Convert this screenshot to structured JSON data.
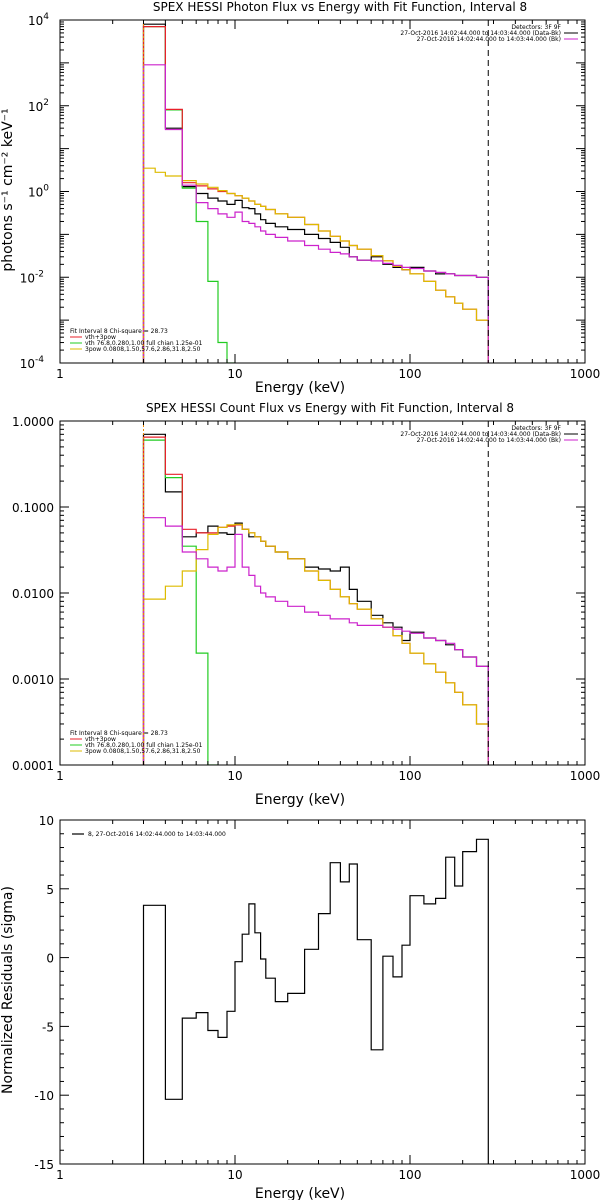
{
  "colors": {
    "black": "#000000",
    "red": "#e8202a",
    "green": "#22cc22",
    "magenta": "#cc22cc",
    "yellow": "#ddbb00",
    "orange": "#ee8800",
    "grey": "#666666"
  },
  "chart_data": [
    {
      "type": "line",
      "title": "SPEX HESSI Photon Flux vs Energy with Fit Function, Interval 8",
      "xlabel": "Energy (keV)",
      "ylabel": "photons s⁻¹ cm⁻² keV⁻¹",
      "xscale": "log",
      "yscale": "log",
      "xlim": [
        1,
        1000
      ],
      "ylim": [
        0.0001,
        10000
      ],
      "x_ticks": [
        {
          "v": 1,
          "t": "1"
        },
        {
          "v": 10,
          "t": "10"
        },
        {
          "v": 100,
          "t": "100"
        },
        {
          "v": 1000,
          "t": "1000"
        }
      ],
      "y_ticks": [
        {
          "v": 0.0001,
          "b": "10",
          "e": "-4"
        },
        {
          "v": 0.01,
          "b": "10",
          "e": "-2"
        },
        {
          "v": 1,
          "b": "10",
          "e": "0"
        },
        {
          "v": 100,
          "b": "10",
          "e": "2"
        },
        {
          "v": 10000,
          "b": "10",
          "e": "4"
        }
      ],
      "vlines": [
        {
          "x": 3,
          "color": "orange",
          "dash": "2,2"
        },
        {
          "x": 280,
          "color": "black",
          "dash": "6,4"
        }
      ],
      "legend_topright": [
        {
          "text": "Detectors: 3F 9F",
          "color": ""
        },
        {
          "text": "27-Oct-2016 14:02:44.000 to 14:03:44.000 (Data-Bk)",
          "color": "black"
        },
        {
          "text": "27-Oct-2016 14:02:44.000 to 14:03:44.000 (Bk)",
          "color": "magenta"
        }
      ],
      "legend_bottomleft": [
        {
          "text": "Fit Interval 8    Chi-square = 28.73",
          "color": ""
        },
        {
          "text": "vth+3pow",
          "color": "red"
        },
        {
          "text": "vth 76.8,0.280,1.00  full chian 1.25e-01",
          "color": "green"
        },
        {
          "text": "3pow 0.0808,1.50,57.6,2.86,31.8,2.50",
          "color": "yellow"
        }
      ],
      "series": [
        {
          "color": "black",
          "x": [
            3,
            3.5,
            4,
            5,
            6,
            7,
            8,
            9,
            10,
            11,
            12,
            13,
            14,
            15,
            17,
            20,
            25,
            30,
            35,
            40,
            45,
            50,
            60,
            70,
            80,
            90,
            100,
            120,
            140,
            160,
            180,
            200,
            240,
            280
          ],
          "y": [
            8000,
            8000,
            30,
            1.3,
            0.9,
            0.7,
            0.6,
            0.5,
            0.62,
            0.42,
            0.4,
            0.3,
            0.22,
            0.18,
            0.15,
            0.13,
            0.1,
            0.08,
            0.065,
            0.05,
            0.03,
            0.025,
            0.03,
            0.02,
            0.017,
            0.015,
            0.017,
            0.014,
            0.012,
            0.012,
            0.011,
            0.011,
            0.01,
            0.01
          ]
        },
        {
          "color": "green",
          "x": [
            3,
            3.5,
            4,
            5,
            6,
            7,
            8,
            9,
            10,
            11,
            12,
            13,
            14,
            15,
            17,
            20,
            25,
            30,
            35,
            40,
            45,
            50,
            60,
            70,
            80,
            90,
            100,
            120,
            140,
            160,
            180,
            200,
            240,
            280
          ],
          "y": [
            7000,
            7000,
            80,
            1.2,
            0.2,
            0.008,
            0.0003,
            1e-05,
            null,
            null,
            null,
            null,
            null,
            null,
            null,
            null,
            null,
            null,
            null,
            null,
            null,
            null,
            null,
            null,
            null,
            null,
            null,
            null,
            null,
            null,
            null,
            null,
            null,
            null
          ]
        },
        {
          "color": "red",
          "x": [
            3,
            3.5,
            4,
            5,
            6,
            7,
            8,
            9,
            10,
            11,
            12,
            13,
            14,
            15,
            17,
            20,
            25,
            30,
            35,
            40,
            45,
            50,
            60,
            70,
            80,
            90,
            100,
            120,
            140,
            160,
            180,
            200,
            240,
            280
          ],
          "y": [
            7000,
            7000,
            82,
            1.6,
            1.35,
            1.15,
            1.0,
            0.9,
            0.8,
            0.7,
            0.6,
            0.5,
            0.45,
            0.38,
            0.3,
            0.25,
            0.17,
            0.12,
            0.09,
            0.07,
            0.055,
            0.045,
            0.032,
            0.024,
            0.018,
            0.015,
            0.012,
            0.008,
            0.005,
            0.0035,
            0.0025,
            0.0018,
            0.001,
            0.0005
          ]
        },
        {
          "color": "yellow",
          "x": [
            3,
            3.5,
            4,
            5,
            6,
            7,
            8,
            9,
            10,
            11,
            12,
            13,
            14,
            15,
            17,
            20,
            25,
            30,
            35,
            40,
            45,
            50,
            60,
            70,
            80,
            90,
            100,
            120,
            140,
            160,
            180,
            200,
            240,
            280
          ],
          "y": [
            3.5,
            2.8,
            2.3,
            1.8,
            1.5,
            1.25,
            1.05,
            0.9,
            0.8,
            0.7,
            0.6,
            0.5,
            0.45,
            0.38,
            0.3,
            0.25,
            0.17,
            0.12,
            0.09,
            0.07,
            0.055,
            0.045,
            0.032,
            0.024,
            0.018,
            0.015,
            0.012,
            0.008,
            0.005,
            0.0035,
            0.0025,
            0.0018,
            0.001,
            0.0005
          ]
        },
        {
          "color": "magenta",
          "x": [
            3,
            3.5,
            4,
            5,
            6,
            7,
            8,
            9,
            10,
            11,
            12,
            13,
            14,
            15,
            17,
            20,
            25,
            30,
            35,
            40,
            45,
            50,
            60,
            70,
            80,
            90,
            100,
            120,
            140,
            160,
            180,
            200,
            240,
            280
          ],
          "y": [
            900,
            900,
            28,
            1.4,
            0.55,
            0.4,
            0.3,
            0.25,
            0.33,
            0.2,
            0.18,
            0.15,
            0.12,
            0.1,
            0.085,
            0.07,
            0.055,
            0.045,
            0.038,
            0.035,
            0.03,
            0.025,
            0.024,
            0.021,
            0.019,
            0.017,
            0.016,
            0.014,
            0.013,
            0.012,
            0.011,
            0.011,
            0.01,
            0.01
          ]
        }
      ]
    },
    {
      "type": "line",
      "title": "SPEX HESSI Count Flux vs Energy with Fit Function, Interval 8",
      "xlabel": "Energy (keV)",
      "ylabel": "",
      "xscale": "log",
      "yscale": "log",
      "xlim": [
        1,
        1000
      ],
      "ylim": [
        0.0001,
        1.0
      ],
      "x_ticks": [
        {
          "v": 1,
          "t": "1"
        },
        {
          "v": 10,
          "t": "10"
        },
        {
          "v": 100,
          "t": "100"
        },
        {
          "v": 1000,
          "t": "1000"
        }
      ],
      "y_ticks": [
        {
          "v": 0.0001,
          "t": "0.0001"
        },
        {
          "v": 0.001,
          "t": "0.0010"
        },
        {
          "v": 0.01,
          "t": "0.0100"
        },
        {
          "v": 0.1,
          "t": "0.1000"
        },
        {
          "v": 1.0,
          "t": "1.0000"
        }
      ],
      "vlines": [
        {
          "x": 3,
          "color": "orange",
          "dash": "2,2"
        },
        {
          "x": 280,
          "color": "black",
          "dash": "6,4"
        }
      ],
      "legend_topright": [
        {
          "text": "Detectors: 3F 9F",
          "color": ""
        },
        {
          "text": "27-Oct-2016 14:02:44.000 to 14:03:44.000 (Data-Bk)",
          "color": "black"
        },
        {
          "text": "27-Oct-2016 14:02:44.000 to 14:03:44.000 (Bk)",
          "color": "magenta"
        }
      ],
      "legend_bottomleft": [
        {
          "text": "Fit Interval 8    Chi-square = 28.73",
          "color": ""
        },
        {
          "text": "vth+3pow",
          "color": "red"
        },
        {
          "text": "vth 76.8,0.280,1.00  full chian 1.25e-01",
          "color": "green"
        },
        {
          "text": "3pow 0.0808,1.50,57.6,2.86,31.8,2.50",
          "color": "yellow"
        }
      ],
      "series": [
        {
          "color": "black",
          "x": [
            3,
            3.5,
            4,
            5,
            6,
            7,
            8,
            9,
            10,
            11,
            12,
            13,
            14,
            15,
            17,
            20,
            25,
            30,
            35,
            40,
            45,
            50,
            60,
            70,
            80,
            90,
            100,
            120,
            140,
            160,
            180,
            200,
            240,
            280
          ],
          "y": [
            0.7,
            0.7,
            0.15,
            0.045,
            0.05,
            0.06,
            0.05,
            0.048,
            0.065,
            0.055,
            0.045,
            0.045,
            0.04,
            0.035,
            0.03,
            0.025,
            0.02,
            0.019,
            0.018,
            0.02,
            0.011,
            0.008,
            0.0055,
            0.0045,
            0.004,
            0.0028,
            0.0035,
            0.003,
            0.0028,
            0.0025,
            0.0022,
            0.0018,
            0.0014,
            0.001
          ]
        },
        {
          "color": "green",
          "x": [
            3,
            3.5,
            4,
            5,
            6,
            7,
            8,
            9,
            10,
            11,
            12,
            13,
            14,
            15,
            17,
            20,
            25,
            30,
            35,
            40,
            45,
            50,
            60,
            70,
            80,
            90,
            100,
            120,
            140,
            160,
            180,
            200,
            240,
            280
          ],
          "y": [
            0.6,
            0.6,
            0.22,
            0.035,
            0.002,
            5e-05,
            null,
            null,
            null,
            null,
            null,
            null,
            null,
            null,
            null,
            null,
            null,
            null,
            null,
            null,
            null,
            null,
            null,
            null,
            null,
            null,
            null,
            null,
            null,
            null,
            null,
            null,
            null,
            null
          ]
        },
        {
          "color": "red",
          "x": [
            3,
            3.5,
            4,
            5,
            6,
            7,
            8,
            9,
            10,
            11,
            12,
            13,
            14,
            15,
            17,
            20,
            25,
            30,
            35,
            40,
            45,
            50,
            60,
            70,
            80,
            90,
            100,
            120,
            140,
            160,
            180,
            200,
            240,
            280
          ],
          "y": [
            0.65,
            0.65,
            0.24,
            0.055,
            0.05,
            0.05,
            0.058,
            0.06,
            0.062,
            0.055,
            0.05,
            0.045,
            0.04,
            0.035,
            0.03,
            0.025,
            0.018,
            0.014,
            0.011,
            0.009,
            0.0075,
            0.0065,
            0.005,
            0.004,
            0.0032,
            0.0026,
            0.002,
            0.0015,
            0.0012,
            0.0009,
            0.0007,
            0.0005,
            0.0003,
            0.0002
          ]
        },
        {
          "color": "yellow",
          "x": [
            3,
            3.5,
            4,
            5,
            6,
            7,
            8,
            9,
            10,
            11,
            12,
            13,
            14,
            15,
            17,
            20,
            25,
            30,
            35,
            40,
            45,
            50,
            60,
            70,
            80,
            90,
            100,
            120,
            140,
            160,
            180,
            200,
            240,
            280
          ],
          "y": [
            0.0085,
            0.0085,
            0.012,
            0.018,
            0.032,
            0.048,
            0.058,
            0.062,
            0.063,
            0.055,
            0.05,
            0.045,
            0.04,
            0.035,
            0.03,
            0.025,
            0.018,
            0.014,
            0.011,
            0.009,
            0.0075,
            0.0065,
            0.005,
            0.004,
            0.0032,
            0.0026,
            0.002,
            0.0015,
            0.0012,
            0.0009,
            0.0007,
            0.0005,
            0.0003,
            0.0002
          ]
        },
        {
          "color": "magenta",
          "x": [
            3,
            3.5,
            4,
            5,
            6,
            7,
            8,
            9,
            10,
            11,
            12,
            13,
            14,
            15,
            17,
            20,
            25,
            30,
            35,
            40,
            45,
            50,
            60,
            70,
            80,
            90,
            100,
            120,
            140,
            160,
            180,
            200,
            240,
            280
          ],
          "y": [
            0.075,
            0.075,
            0.06,
            0.03,
            0.025,
            0.02,
            0.018,
            0.02,
            0.048,
            0.02,
            0.016,
            0.012,
            0.01,
            0.009,
            0.008,
            0.007,
            0.006,
            0.0055,
            0.005,
            0.005,
            0.0045,
            0.0042,
            0.0042,
            0.004,
            0.0038,
            0.0036,
            0.0034,
            0.003,
            0.0028,
            0.0026,
            0.0022,
            0.0018,
            0.0014,
            0.001
          ]
        }
      ]
    },
    {
      "type": "line",
      "title": "",
      "xlabel": "Energy (keV)",
      "ylabel": "Normalized Residuals (sigma)",
      "xscale": "log",
      "yscale": "linear",
      "xlim": [
        1,
        1000
      ],
      "ylim": [
        -15,
        10
      ],
      "x_ticks": [
        {
          "v": 1,
          "t": "1"
        },
        {
          "v": 10,
          "t": "10"
        },
        {
          "v": 100,
          "t": "100"
        },
        {
          "v": 1000,
          "t": "1000"
        }
      ],
      "y_ticks": [
        {
          "v": -15,
          "t": "-15"
        },
        {
          "v": -10,
          "t": "-10"
        },
        {
          "v": -5,
          "t": "-5"
        },
        {
          "v": 0,
          "t": "0"
        },
        {
          "v": 5,
          "t": "5"
        },
        {
          "v": 10,
          "t": "10"
        }
      ],
      "vlines": [],
      "legend_topleft": [
        {
          "text": "8, 27-Oct-2016 14:02:44.000 to 14:03:44.000",
          "color": "black"
        }
      ],
      "series": [
        {
          "color": "black",
          "x": [
            3,
            3.5,
            4,
            5,
            6,
            7,
            8,
            9,
            10,
            11,
            12,
            13,
            14,
            15,
            17,
            20,
            25,
            30,
            35,
            40,
            45,
            50,
            60,
            70,
            80,
            90,
            100,
            120,
            140,
            160,
            180,
            200,
            240,
            280
          ],
          "y": [
            3.8,
            3.8,
            -10.3,
            -4.4,
            -4.0,
            -5.3,
            -5.8,
            -3.9,
            -0.3,
            1.7,
            3.9,
            1.8,
            -0.1,
            -1.5,
            -3.2,
            -2.6,
            0.6,
            3.2,
            6.9,
            5.5,
            6.8,
            1.3,
            -6.7,
            0.1,
            -1.4,
            0.9,
            4.5,
            3.9,
            4.3,
            7.3,
            5.2,
            7.7,
            8.6,
            8.2
          ]
        }
      ]
    }
  ]
}
